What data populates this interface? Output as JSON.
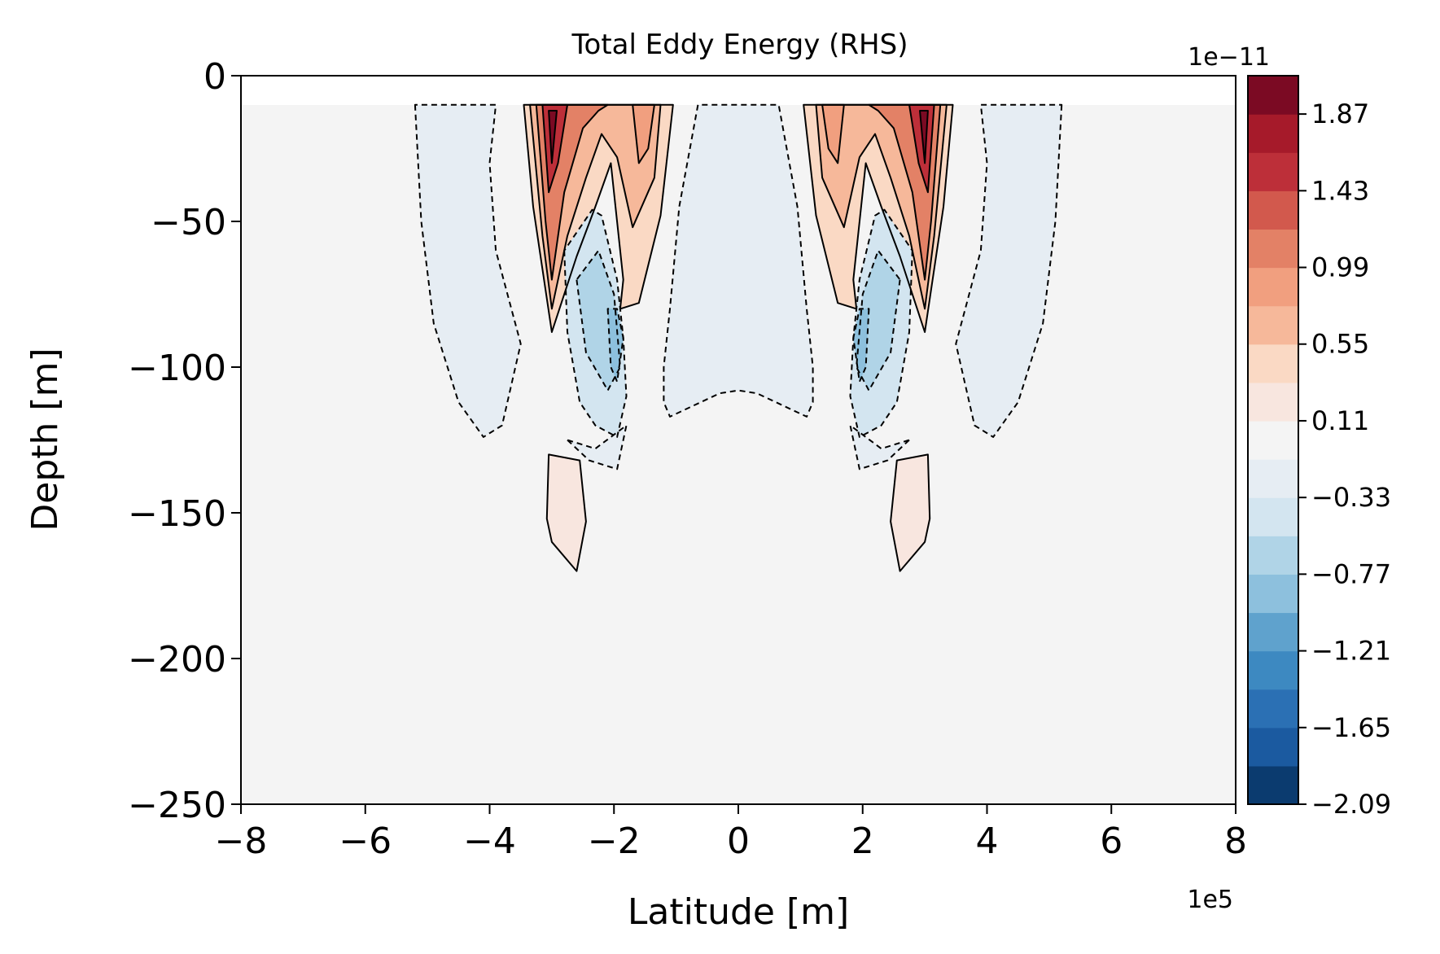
{
  "chart_data": {
    "type": "contour",
    "title": "Total Eddy Energy (RHS)",
    "xlabel": "Latitude [m]",
    "ylabel": "Depth [m]",
    "x_scale_label": "1e5",
    "x_ticks": [
      "−8",
      "−6",
      "−4",
      "−2",
      "0",
      "2",
      "4",
      "6",
      "8"
    ],
    "x_tick_values": [
      -8,
      -6,
      -4,
      -2,
      0,
      2,
      4,
      6,
      8
    ],
    "xlim": [
      -8,
      8
    ],
    "y_ticks": [
      "0",
      "−50",
      "−100",
      "−150",
      "−200",
      "−250"
    ],
    "y_tick_values": [
      0,
      -50,
      -100,
      -150,
      -200,
      -250
    ],
    "ylim": [
      -250,
      0
    ],
    "colorbar": {
      "scale_label": "1e−11",
      "tick_labels": [
        "1.87",
        "1.43",
        "0.99",
        "0.55",
        "0.11",
        "−0.33",
        "−0.77",
        "−1.21",
        "−1.65",
        "−2.09"
      ],
      "tick_values": [
        1.87,
        1.43,
        0.99,
        0.55,
        0.11,
        -0.33,
        -0.77,
        -1.21,
        -1.65,
        -2.09
      ],
      "range": [
        -2.09,
        2.09
      ],
      "levels": 19,
      "colormap": "RdBu_r",
      "colors_low_to_high": [
        "#0b3b6f",
        "#1b5aa0",
        "#2b70b4",
        "#3d89c1",
        "#5fa2cd",
        "#8dc0dd",
        "#b0d4e7",
        "#d3e5f0",
        "#e6edf3",
        "#f4f4f4",
        "#f8e6df",
        "#fad9c4",
        "#f6b89a",
        "#f19f7f",
        "#e38166",
        "#d2594d",
        "#bd2f39",
        "#a61a2a",
        "#7b0a23"
      ]
    },
    "surface_gap_depth": -10,
    "contour_lines": {
      "positive": "solid",
      "negative": "dashed",
      "color": "#000000"
    },
    "symmetry": "mirror about latitude 0",
    "features": [
      {
        "name": "positive-core",
        "level": 1.87,
        "latitude": [
          -3.1,
          -2.8
        ],
        "depth": [
          -10,
          -40
        ],
        "color": "#7b0a23"
      },
      {
        "name": "positive-lobe",
        "level": 0.55,
        "latitude": [
          -3.4,
          -1.2
        ],
        "depth": [
          -10,
          -80
        ],
        "color": "#fad9c4"
      },
      {
        "name": "negative-lobe",
        "level": -0.77,
        "latitude": [
          -2.5,
          -1.7
        ],
        "depth": [
          -60,
          -125
        ],
        "color": "#b0d4e7"
      },
      {
        "name": "outer-negative",
        "level": -0.33,
        "latitude": [
          -5.2,
          -3.5
        ],
        "depth": [
          -10,
          -124
        ],
        "color": "#e6edf3"
      },
      {
        "name": "central-negative",
        "level": -0.33,
        "latitude": [
          -1.2,
          1.2
        ],
        "depth": [
          -10,
          -117
        ],
        "color": "#e6edf3"
      },
      {
        "name": "deep-positive",
        "level": 0.11,
        "latitude": [
          -3.0,
          -2.4
        ],
        "depth": [
          -130,
          -170
        ],
        "color": "#f8e6df"
      }
    ]
  }
}
